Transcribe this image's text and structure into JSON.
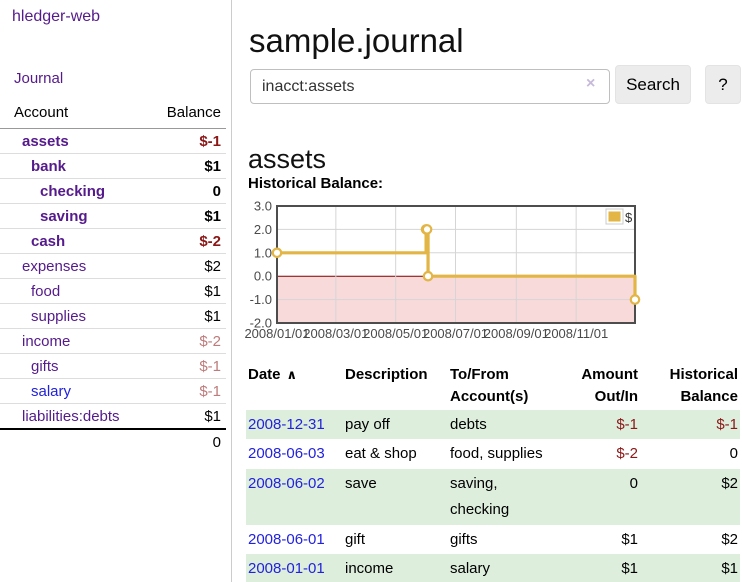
{
  "app": {
    "brand": "hledger-web",
    "nav": {
      "journal": "Journal"
    }
  },
  "sidebar": {
    "header": {
      "account": "Account",
      "balance": "Balance"
    },
    "accounts": [
      {
        "name": "assets",
        "level": 0,
        "bold": true,
        "balance": "$-1",
        "negative": "strong"
      },
      {
        "name": "bank",
        "level": 1,
        "bold": true,
        "balance": "$1",
        "negative": null
      },
      {
        "name": "checking",
        "level": 2,
        "bold": true,
        "balance": "0",
        "negative": null
      },
      {
        "name": "saving",
        "level": 2,
        "bold": true,
        "balance": "$1",
        "negative": null
      },
      {
        "name": "cash",
        "level": 1,
        "bold": true,
        "balance": "$-2",
        "negative": "strong"
      },
      {
        "name": "expenses",
        "level": 0,
        "bold": false,
        "balance": "$2",
        "negative": null
      },
      {
        "name": "food",
        "level": 1,
        "bold": false,
        "balance": "$1",
        "negative": null
      },
      {
        "name": "supplies",
        "level": 1,
        "bold": false,
        "balance": "$1",
        "negative": null
      },
      {
        "name": "income",
        "level": 0,
        "bold": false,
        "balance": "$-2",
        "negative": "soft"
      },
      {
        "name": "gifts",
        "level": 1,
        "bold": false,
        "balance": "$-1",
        "negative": "soft"
      },
      {
        "name": "salary",
        "level": 1,
        "bold": false,
        "balance": "$-1",
        "negative": "soft",
        "link_style": "unvisited"
      },
      {
        "name": "liabilities:debts",
        "level": 0,
        "bold": false,
        "balance": "$1",
        "negative": null
      }
    ],
    "total": "0"
  },
  "header": {
    "title": "sample.journal"
  },
  "search": {
    "value": "inacct:assets",
    "clear_label": "×",
    "button_label": "Search",
    "help_label": "?"
  },
  "main": {
    "account_title": "assets",
    "chart_label": "Historical Balance:"
  },
  "chart_data": {
    "type": "line",
    "step": true,
    "series": [
      {
        "name": "$",
        "color": "#e2b545",
        "points": [
          [
            "2008-01-01",
            1
          ],
          [
            "2008-06-01",
            2
          ],
          [
            "2008-06-02",
            2
          ],
          [
            "2008-06-03",
            0
          ],
          [
            "2008-12-31",
            -1
          ]
        ]
      }
    ],
    "xlim": [
      "2008-01-01",
      "2008-12-31"
    ],
    "ylim": [
      -2,
      3
    ],
    "x_ticks": [
      "2008/01/01",
      "2008/03/01",
      "2008/05/01",
      "2008/07/01",
      "2008/09/01",
      "2008/11/01"
    ],
    "y_ticks": [
      3.0,
      2.0,
      1.0,
      0.0,
      -1.0,
      -2.0
    ],
    "grid": true,
    "negative_fill": "#f9dada",
    "zero_line_color": "#800000",
    "legend": {
      "label": "$",
      "position": "top-right"
    }
  },
  "register": {
    "headers": {
      "date": "Date",
      "sort_icon": "∧",
      "description": "Description",
      "accounts": "To/From Account(s)",
      "amount": "Amount Out/In",
      "balance": "Historical Balance"
    },
    "rows": [
      {
        "date": "2008-12-31",
        "description": "pay off",
        "accounts": "debts",
        "amount": "$-1",
        "amount_negative": true,
        "balance": "$-1",
        "balance_negative": true
      },
      {
        "date": "2008-06-03",
        "description": "eat & shop",
        "accounts": "food, supplies",
        "amount": "$-2",
        "amount_negative": true,
        "balance": "0",
        "balance_negative": false
      },
      {
        "date": "2008-06-02",
        "description": "save",
        "accounts": "saving, checking",
        "amount": "0",
        "amount_negative": false,
        "balance": "$2",
        "balance_negative": false
      },
      {
        "date": "2008-06-01",
        "description": "gift",
        "accounts": "gifts",
        "amount": "$1",
        "amount_negative": false,
        "balance": "$2",
        "balance_negative": false
      },
      {
        "date": "2008-01-01",
        "description": "income",
        "accounts": "salary",
        "amount": "$1",
        "amount_negative": false,
        "balance": "$1",
        "balance_negative": false
      }
    ]
  },
  "colors": {
    "accent_purple": "#551a8b",
    "link_blue": "#2222dd",
    "negative_strong": "#8b1717",
    "negative_soft": "#bd7b7b",
    "row_green": "#ddeedd",
    "chart_gold": "#e2b545",
    "chart_negative_fill": "#f9dada",
    "chart_zero_line": "#800000"
  }
}
